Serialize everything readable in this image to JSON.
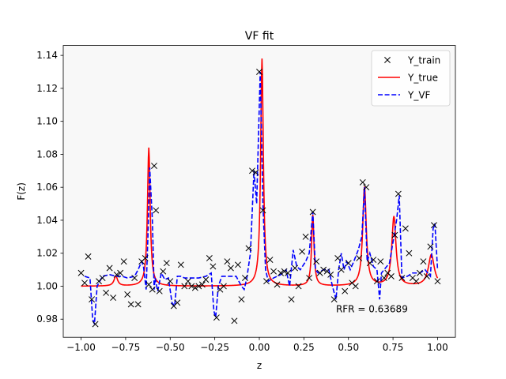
{
  "chart_data": {
    "type": "line",
    "title": "VF fit",
    "xlabel": "z",
    "ylabel": "F(z)",
    "xlim": [
      -1.1,
      1.1
    ],
    "ylim": [
      0.969,
      1.146
    ],
    "xticks": [
      -1.0,
      -0.75,
      -0.5,
      -0.25,
      0.0,
      0.25,
      0.5,
      0.75,
      1.0
    ],
    "xtick_labels": [
      "−1.00",
      "−0.75",
      "−0.50",
      "−0.25",
      "0.00",
      "0.25",
      "0.50",
      "0.75",
      "1.00"
    ],
    "yticks": [
      0.98,
      1.0,
      1.02,
      1.04,
      1.06,
      1.08,
      1.1,
      1.12,
      1.14
    ],
    "ytick_labels": [
      "0.98",
      "1.00",
      "1.02",
      "1.04",
      "1.06",
      "1.08",
      "1.10",
      "1.12",
      "1.14"
    ],
    "plot_background": "#f8f8f8",
    "legend": {
      "placement": "top-right",
      "entries": [
        {
          "label": "Y_train",
          "style": "marker-x",
          "color": "#000000"
        },
        {
          "label": "Y_true",
          "style": "solid",
          "color": "#ff0000"
        },
        {
          "label": "Y_VF",
          "style": "dashed",
          "color": "#0000ff"
        }
      ]
    },
    "annotation": {
      "text": "RFR = 0.63689",
      "x": 0.43,
      "y": 0.986
    },
    "series": [
      {
        "name": "Y_train",
        "kind": "scatter",
        "color": "#000000",
        "points": [
          [
            -1.0,
            1.008
          ],
          [
            -0.98,
            1.002
          ],
          [
            -0.96,
            1.018
          ],
          [
            -0.94,
            0.992
          ],
          [
            -0.92,
            0.977
          ],
          [
            -0.9,
            1.003
          ],
          [
            -0.88,
            1.005
          ],
          [
            -0.86,
            0.996
          ],
          [
            -0.84,
            1.011
          ],
          [
            -0.82,
            0.993
          ],
          [
            -0.8,
            1.007
          ],
          [
            -0.78,
            1.008
          ],
          [
            -0.76,
            1.015
          ],
          [
            -0.74,
            0.995
          ],
          [
            -0.72,
            0.989
          ],
          [
            -0.7,
            1.005
          ],
          [
            -0.68,
            0.989
          ],
          [
            -0.66,
            1.015
          ],
          [
            -0.64,
            1.017
          ],
          [
            -0.62,
            1.001
          ],
          [
            -0.6,
            0.998
          ],
          [
            -0.59,
            1.073
          ],
          [
            -0.58,
            1.046
          ],
          [
            -0.56,
            0.997
          ],
          [
            -0.54,
            1.009
          ],
          [
            -0.52,
            1.014
          ],
          [
            -0.5,
            1.003
          ],
          [
            -0.48,
            0.988
          ],
          [
            -0.46,
            0.99
          ],
          [
            -0.44,
            1.013
          ],
          [
            -0.42,
            1.0
          ],
          [
            -0.4,
            1.003
          ],
          [
            -0.38,
            1.0
          ],
          [
            -0.36,
            0.999
          ],
          [
            -0.34,
            1.0
          ],
          [
            -0.32,
            1.001
          ],
          [
            -0.3,
            1.004
          ],
          [
            -0.28,
            1.017
          ],
          [
            -0.26,
            1.012
          ],
          [
            -0.24,
            0.981
          ],
          [
            -0.22,
            0.998
          ],
          [
            -0.2,
            1.0
          ],
          [
            -0.18,
            1.015
          ],
          [
            -0.16,
            1.011
          ],
          [
            -0.14,
            0.979
          ],
          [
            -0.12,
            1.013
          ],
          [
            -0.1,
            0.992
          ],
          [
            -0.08,
            1.005
          ],
          [
            -0.06,
            1.023
          ],
          [
            -0.04,
            1.07
          ],
          [
            -0.02,
            1.069
          ],
          [
            0.0,
            1.13
          ],
          [
            0.02,
            1.046
          ],
          [
            0.04,
            1.003
          ],
          [
            0.06,
            1.016
          ],
          [
            0.08,
            1.009
          ],
          [
            0.1,
            1.001
          ],
          [
            0.12,
            1.008
          ],
          [
            0.14,
            1.009
          ],
          [
            0.16,
            1.008
          ],
          [
            0.18,
            0.992
          ],
          [
            0.2,
            1.011
          ],
          [
            0.22,
            1.0
          ],
          [
            0.24,
            1.021
          ],
          [
            0.26,
            1.03
          ],
          [
            0.28,
            1.005
          ],
          [
            0.3,
            1.045
          ],
          [
            0.32,
            1.015
          ],
          [
            0.34,
            1.008
          ],
          [
            0.36,
            1.01
          ],
          [
            0.38,
            1.009
          ],
          [
            0.4,
            1.007
          ],
          [
            0.42,
            0.992
          ],
          [
            0.44,
            1.017
          ],
          [
            0.46,
            1.01
          ],
          [
            0.48,
            0.997
          ],
          [
            0.5,
            1.014
          ],
          [
            0.52,
            1.002
          ],
          [
            0.54,
            1.0
          ],
          [
            0.56,
            1.017
          ],
          [
            0.58,
            1.063
          ],
          [
            0.6,
            1.06
          ],
          [
            0.62,
            1.014
          ],
          [
            0.64,
            1.016
          ],
          [
            0.66,
            1.003
          ],
          [
            0.68,
            1.015
          ],
          [
            0.7,
            1.005
          ],
          [
            0.72,
            1.008
          ],
          [
            0.74,
            1.006
          ],
          [
            0.76,
            1.031
          ],
          [
            0.78,
            1.056
          ],
          [
            0.8,
            1.005
          ],
          [
            0.82,
            1.035
          ],
          [
            0.84,
            1.02
          ],
          [
            0.86,
            1.005
          ],
          [
            0.88,
            1.003
          ],
          [
            0.9,
            1.008
          ],
          [
            0.92,
            1.015
          ],
          [
            0.94,
            1.006
          ],
          [
            0.96,
            1.024
          ],
          [
            0.98,
            1.037
          ],
          [
            1.0,
            1.003
          ]
        ]
      },
      {
        "name": "Y_true",
        "kind": "line",
        "color": "#ff0000",
        "baseline": 1.0,
        "peaks": [
          {
            "x0": -0.805,
            "amp": 0.006,
            "w": 0.012
          },
          {
            "x0": -0.62,
            "amp": 0.084,
            "w": 0.009
          },
          {
            "x0": 0.015,
            "amp": 0.138,
            "w": 0.009
          },
          {
            "x0": 0.3,
            "amp": 0.043,
            "w": 0.008
          },
          {
            "x0": 0.59,
            "amp": 0.06,
            "w": 0.012
          },
          {
            "x0": 0.755,
            "amp": 0.042,
            "w": 0.014
          },
          {
            "x0": 0.965,
            "amp": 0.019,
            "w": 0.02
          }
        ]
      },
      {
        "name": "Y_VF",
        "kind": "line",
        "style": "dashed",
        "color": "#0000ff",
        "points": [
          [
            -0.98,
            1.006
          ],
          [
            -0.95,
            1.005
          ],
          [
            -0.935,
            0.98
          ],
          [
            -0.925,
            0.977
          ],
          [
            -0.91,
            1.0
          ],
          [
            -0.88,
            1.006
          ],
          [
            -0.84,
            1.007
          ],
          [
            -0.8,
            1.006
          ],
          [
            -0.77,
            1.006
          ],
          [
            -0.74,
            1.005
          ],
          [
            -0.7,
            1.006
          ],
          [
            -0.68,
            1.01
          ],
          [
            -0.66,
            1.015
          ],
          [
            -0.65,
            1.012
          ],
          [
            -0.635,
            0.998
          ],
          [
            -0.625,
            1.03
          ],
          [
            -0.615,
            1.072
          ],
          [
            -0.6,
            1.04
          ],
          [
            -0.59,
            0.998
          ],
          [
            -0.585,
            1.005
          ],
          [
            -0.57,
            0.997
          ],
          [
            -0.55,
            1.008
          ],
          [
            -0.53,
            1.004
          ],
          [
            -0.51,
            1.005
          ],
          [
            -0.49,
            0.99
          ],
          [
            -0.475,
            0.988
          ],
          [
            -0.46,
            1.006
          ],
          [
            -0.44,
            1.006
          ],
          [
            -0.42,
            1.005
          ],
          [
            -0.38,
            1.005
          ],
          [
            -0.34,
            1.005
          ],
          [
            -0.3,
            1.006
          ],
          [
            -0.27,
            1.008
          ],
          [
            -0.255,
            0.985
          ],
          [
            -0.245,
            0.981
          ],
          [
            -0.23,
            1.0
          ],
          [
            -0.21,
            1.006
          ],
          [
            -0.17,
            1.006
          ],
          [
            -0.13,
            1.006
          ],
          [
            -0.1,
            1.0
          ],
          [
            -0.085,
            0.998
          ],
          [
            -0.07,
            1.005
          ],
          [
            -0.05,
            1.02
          ],
          [
            -0.03,
            1.07
          ],
          [
            -0.015,
            1.05
          ],
          [
            0.005,
            1.13
          ],
          [
            0.02,
            1.05
          ],
          [
            0.035,
            1.01
          ],
          [
            0.05,
            1.003
          ],
          [
            0.08,
            1.005
          ],
          [
            0.12,
            1.007
          ],
          [
            0.15,
            1.01
          ],
          [
            0.17,
            1.0
          ],
          [
            0.19,
            1.022
          ],
          [
            0.21,
            1.012
          ],
          [
            0.23,
            1.01
          ],
          [
            0.26,
            1.015
          ],
          [
            0.28,
            1.02
          ],
          [
            0.3,
            1.045
          ],
          [
            0.315,
            1.01
          ],
          [
            0.33,
            1.008
          ],
          [
            0.36,
            1.01
          ],
          [
            0.39,
            1.01
          ],
          [
            0.41,
            1.0
          ],
          [
            0.43,
            0.992
          ],
          [
            0.445,
            1.01
          ],
          [
            0.46,
            1.02
          ],
          [
            0.475,
            1.01
          ],
          [
            0.49,
            1.015
          ],
          [
            0.51,
            1.01
          ],
          [
            0.53,
            1.015
          ],
          [
            0.555,
            1.022
          ],
          [
            0.575,
            1.03
          ],
          [
            0.59,
            1.06
          ],
          [
            0.605,
            1.015
          ],
          [
            0.62,
            1.02
          ],
          [
            0.64,
            1.012
          ],
          [
            0.66,
            1.01
          ],
          [
            0.675,
            0.992
          ],
          [
            0.685,
            1.008
          ],
          [
            0.7,
            1.01
          ],
          [
            0.73,
            1.014
          ],
          [
            0.755,
            1.03
          ],
          [
            0.77,
            1.04
          ],
          [
            0.785,
            1.055
          ],
          [
            0.8,
            1.005
          ],
          [
            0.83,
            1.006
          ],
          [
            0.86,
            1.008
          ],
          [
            0.9,
            1.008
          ],
          [
            0.93,
            1.01
          ],
          [
            0.96,
            1.006
          ],
          [
            0.975,
            1.035
          ],
          [
            0.985,
            1.038
          ],
          [
            1.0,
            1.01
          ]
        ]
      }
    ]
  }
}
